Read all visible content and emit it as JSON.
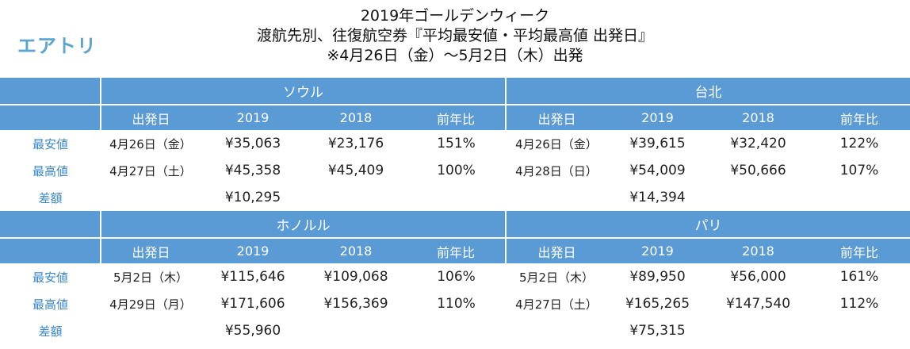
{
  "brand": "エアトリ",
  "title": {
    "line1": "2019年ゴールデンウィーク",
    "line2": "渡航先別、往復航空券『平均最安値・平均最高値 出発日』",
    "line3": "※4月26日（金）～5月2日（木）出発"
  },
  "columns": {
    "date": "出発日",
    "y2019": "2019",
    "y2018": "2018",
    "ratio": "前年比"
  },
  "row_labels": {
    "min": "最安値",
    "max": "最高値",
    "diff": "差額"
  },
  "blocks": [
    {
      "left": {
        "city": "ソウル",
        "min": {
          "date": "4月26日（金）",
          "v2019": "¥35,063",
          "v2018": "¥23,176",
          "ratio": "151%"
        },
        "max": {
          "date": "4月27日（土）",
          "v2019": "¥45,358",
          "v2018": "¥45,409",
          "ratio": "100%"
        },
        "diff": "¥10,295"
      },
      "right": {
        "city": "台北",
        "min": {
          "date": "4月26日（金）",
          "v2019": "¥39,615",
          "v2018": "¥32,420",
          "ratio": "122%"
        },
        "max": {
          "date": "4月28日（日）",
          "v2019": "¥54,009",
          "v2018": "¥50,666",
          "ratio": "107%"
        },
        "diff": "¥14,394"
      }
    },
    {
      "left": {
        "city": "ホノルル",
        "min": {
          "date": "5月2日（木）",
          "v2019": "¥115,646",
          "v2018": "¥109,068",
          "ratio": "106%"
        },
        "max": {
          "date": "4月29日（月）",
          "v2019": "¥171,606",
          "v2018": "¥156,369",
          "ratio": "110%"
        },
        "diff": "¥55,960"
      },
      "right": {
        "city": "パリ",
        "min": {
          "date": "5月2日（木）",
          "v2019": "¥89,950",
          "v2018": "¥56,000",
          "ratio": "161%"
        },
        "max": {
          "date": "4月27日（土）",
          "v2019": "¥165,265",
          "v2018": "¥147,540",
          "ratio": "112%"
        },
        "diff": "¥75,315"
      }
    }
  ],
  "colors": {
    "header_bg": "#5b9bd5",
    "label_text": "#3a86c8",
    "logo": "#5ca5cf"
  }
}
